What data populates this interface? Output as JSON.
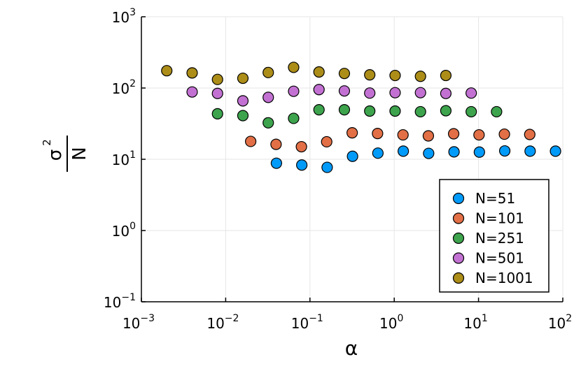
{
  "chart_data": {
    "type": "scatter",
    "xlabel": "α",
    "ylabel": {
      "numerator": "σ",
      "exponent": "2",
      "denominator": "N"
    },
    "x_scale": "log10",
    "y_scale": "log10",
    "xlim": [
      0.001,
      100
    ],
    "ylim": [
      0.1,
      1000
    ],
    "grid": true,
    "legend_position": "bottom-right",
    "x_ticks": [
      {
        "base": "10",
        "exp": "−3",
        "value": 0.001
      },
      {
        "base": "10",
        "exp": "−2",
        "value": 0.01
      },
      {
        "base": "10",
        "exp": "−1",
        "value": 0.1
      },
      {
        "base": "10",
        "exp": "0",
        "value": 1
      },
      {
        "base": "10",
        "exp": "1",
        "value": 10
      },
      {
        "base": "10",
        "exp": "2",
        "value": 100
      }
    ],
    "y_ticks": [
      {
        "base": "10",
        "exp": "−1",
        "value": 0.1
      },
      {
        "base": "10",
        "exp": "0",
        "value": 1
      },
      {
        "base": "10",
        "exp": "1",
        "value": 10
      },
      {
        "base": "10",
        "exp": "2",
        "value": 100
      },
      {
        "base": "10",
        "exp": "3",
        "value": 1000
      }
    ],
    "series": [
      {
        "name": "N=51",
        "color": "#009af9",
        "points": [
          [
            0.04,
            8.8
          ],
          [
            0.08,
            8.3
          ],
          [
            0.16,
            7.7
          ],
          [
            0.32,
            11
          ],
          [
            0.64,
            12.2
          ],
          [
            1.28,
            13
          ],
          [
            2.56,
            12.1
          ],
          [
            5.12,
            12.7
          ],
          [
            10.24,
            12.6
          ],
          [
            20.48,
            13.1
          ],
          [
            40.96,
            13
          ],
          [
            81.92,
            13
          ]
        ]
      },
      {
        "name": "N=101",
        "color": "#e26f46",
        "points": [
          [
            0.0198,
            17.8
          ],
          [
            0.0396,
            16.2
          ],
          [
            0.0792,
            15
          ],
          [
            0.158,
            17.6
          ],
          [
            0.317,
            23.5
          ],
          [
            0.634,
            23
          ],
          [
            1.27,
            22
          ],
          [
            2.54,
            21.3
          ],
          [
            5.07,
            22.8
          ],
          [
            10.14,
            22
          ],
          [
            20.28,
            22.5
          ],
          [
            40.55,
            22.3
          ]
        ]
      },
      {
        "name": "N=251",
        "color": "#3da44d",
        "points": [
          [
            0.008,
            43.5
          ],
          [
            0.016,
            41
          ],
          [
            0.032,
            32.5
          ],
          [
            0.064,
            37.5
          ],
          [
            0.128,
            49.5
          ],
          [
            0.256,
            49.5
          ],
          [
            0.512,
            47.5
          ],
          [
            1.024,
            47.5
          ],
          [
            2.048,
            46.5
          ],
          [
            4.096,
            48
          ],
          [
            8.192,
            46.5
          ],
          [
            16.38,
            46.5
          ]
        ]
      },
      {
        "name": "N=501",
        "color": "#c271d2",
        "points": [
          [
            0.004,
            88
          ],
          [
            0.008,
            84
          ],
          [
            0.016,
            66
          ],
          [
            0.032,
            74
          ],
          [
            0.064,
            90
          ],
          [
            0.128,
            95
          ],
          [
            0.256,
            91
          ],
          [
            0.512,
            85
          ],
          [
            1.024,
            86
          ],
          [
            2.048,
            86
          ],
          [
            4.096,
            84
          ],
          [
            8.192,
            85
          ]
        ]
      },
      {
        "name": "N=1001",
        "color": "#ac8d18",
        "points": [
          [
            0.002,
            175
          ],
          [
            0.004,
            163
          ],
          [
            0.008,
            132
          ],
          [
            0.016,
            137
          ],
          [
            0.032,
            165
          ],
          [
            0.064,
            195
          ],
          [
            0.128,
            168
          ],
          [
            0.256,
            160
          ],
          [
            0.512,
            153
          ],
          [
            1.024,
            150
          ],
          [
            2.048,
            146
          ],
          [
            4.096,
            150
          ]
        ]
      }
    ]
  }
}
